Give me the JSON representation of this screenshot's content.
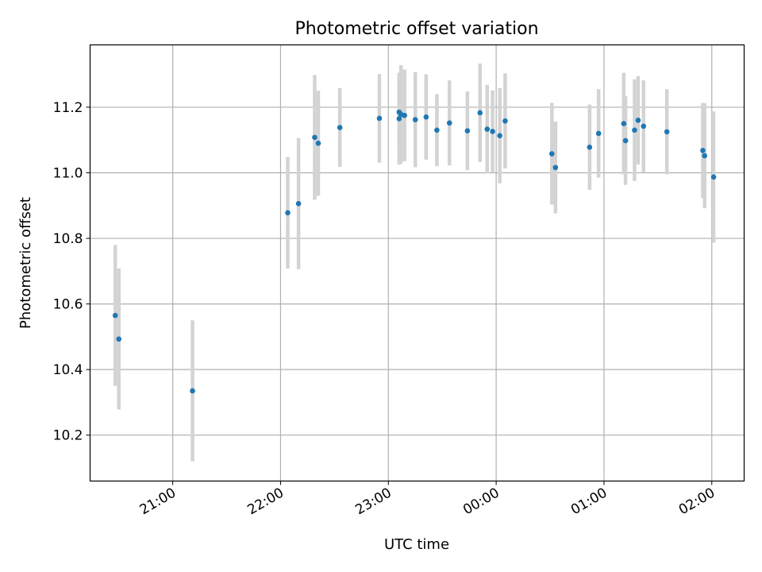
{
  "chart_data": {
    "type": "scatter",
    "title": "Photometric offset variation",
    "xlabel": "UTC time",
    "ylabel": "Photometric offset",
    "x_ticks": [
      "21:00",
      "22:00",
      "23:00",
      "00:00",
      "01:00",
      "02:00"
    ],
    "y_ticks": [
      "10.2",
      "10.4",
      "10.6",
      "10.8",
      "11.0",
      "11.2"
    ],
    "xlim": [
      "20:14",
      "02:18"
    ],
    "ylim": [
      10.06,
      11.39
    ],
    "grid": true,
    "colors": {
      "point": "#1f77b4",
      "errorbar": "#d3d3d3",
      "grid": "#b0b0b0"
    },
    "points": [
      {
        "t": "20:28",
        "y": 10.565,
        "err": 0.215
      },
      {
        "t": "20:30",
        "y": 10.493,
        "err": 0.215
      },
      {
        "t": "21:11",
        "y": 10.335,
        "err": 0.215
      },
      {
        "t": "22:04",
        "y": 10.878,
        "err": 0.17
      },
      {
        "t": "22:10",
        "y": 10.906,
        "err": 0.2
      },
      {
        "t": "22:19",
        "y": 11.108,
        "err": 0.19
      },
      {
        "t": "22:21",
        "y": 11.09,
        "err": 0.16
      },
      {
        "t": "22:33",
        "y": 11.138,
        "err": 0.12
      },
      {
        "t": "22:55",
        "y": 11.166,
        "err": 0.135
      },
      {
        "t": "23:06",
        "y": 11.185,
        "err": 0.115
      },
      {
        "t": "23:06",
        "y": 11.165,
        "err": 0.14
      },
      {
        "t": "23:07",
        "y": 11.178,
        "err": 0.15
      },
      {
        "t": "23:09",
        "y": 11.175,
        "err": 0.14
      },
      {
        "t": "23:15",
        "y": 11.162,
        "err": 0.145
      },
      {
        "t": "23:21",
        "y": 11.17,
        "err": 0.13
      },
      {
        "t": "23:27",
        "y": 11.13,
        "err": 0.11
      },
      {
        "t": "23:34",
        "y": 11.152,
        "err": 0.13
      },
      {
        "t": "23:44",
        "y": 11.128,
        "err": 0.12
      },
      {
        "t": "23:51",
        "y": 11.183,
        "err": 0.15
      },
      {
        "t": "23:55",
        "y": 11.133,
        "err": 0.135
      },
      {
        "t": "23:58",
        "y": 11.126,
        "err": 0.125
      },
      {
        "t": "00:02",
        "y": 11.113,
        "err": 0.145
      },
      {
        "t": "00:05",
        "y": 11.158,
        "err": 0.145
      },
      {
        "t": "00:31",
        "y": 11.058,
        "err": 0.155
      },
      {
        "t": "00:33",
        "y": 11.016,
        "err": 0.14
      },
      {
        "t": "00:52",
        "y": 11.078,
        "err": 0.13
      },
      {
        "t": "00:57",
        "y": 11.12,
        "err": 0.135
      },
      {
        "t": "01:11",
        "y": 11.15,
        "err": 0.155
      },
      {
        "t": "01:12",
        "y": 11.098,
        "err": 0.135
      },
      {
        "t": "01:17",
        "y": 11.13,
        "err": 0.155
      },
      {
        "t": "01:19",
        "y": 11.16,
        "err": 0.135
      },
      {
        "t": "01:22",
        "y": 11.142,
        "err": 0.14
      },
      {
        "t": "01:35",
        "y": 11.125,
        "err": 0.13
      },
      {
        "t": "01:55",
        "y": 11.068,
        "err": 0.145
      },
      {
        "t": "01:56",
        "y": 11.052,
        "err": 0.16
      },
      {
        "t": "02:01",
        "y": 10.987,
        "err": 0.2
      }
    ]
  }
}
